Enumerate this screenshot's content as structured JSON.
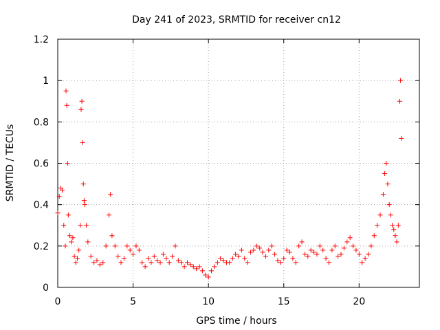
{
  "chart_data": {
    "type": "scatter",
    "title": "Day 241 of 2023, SRMTID for receiver cn12",
    "xlabel": "GPS time / hours",
    "ylabel": "SRMTID / TECUs",
    "xlim": [
      0,
      24
    ],
    "ylim": [
      0,
      1.2
    ],
    "xticks": [
      0,
      5,
      10,
      15,
      20
    ],
    "xtick_labels": [
      "0",
      "5",
      "10",
      "15",
      "20"
    ],
    "yticks": [
      0,
      0.2,
      0.4,
      0.6,
      0.8,
      1.0,
      1.2
    ],
    "ytick_labels": [
      "0",
      "0.2",
      "0.4",
      "0.6",
      "0.8",
      "1",
      "1.2"
    ],
    "grid": true,
    "marker": "+",
    "color": "#ff0000",
    "series": [
      {
        "name": "SRMTID",
        "x": [
          0.0,
          0.1,
          0.2,
          0.3,
          0.4,
          0.5,
          0.55,
          0.6,
          0.65,
          0.7,
          0.8,
          0.9,
          1.0,
          1.1,
          1.2,
          1.3,
          1.4,
          1.5,
          1.55,
          1.6,
          1.65,
          1.7,
          1.75,
          1.8,
          1.9,
          2.0,
          2.2,
          2.4,
          2.6,
          2.8,
          3.0,
          3.2,
          3.4,
          3.5,
          3.6,
          3.8,
          4.0,
          4.2,
          4.4,
          4.6,
          4.8,
          5.0,
          5.2,
          5.4,
          5.6,
          5.8,
          6.0,
          6.2,
          6.4,
          6.6,
          6.8,
          7.0,
          7.2,
          7.4,
          7.6,
          7.8,
          8.0,
          8.2,
          8.4,
          8.6,
          8.8,
          9.0,
          9.2,
          9.4,
          9.6,
          9.8,
          10.0,
          10.2,
          10.4,
          10.6,
          10.8,
          11.0,
          11.2,
          11.4,
          11.6,
          11.8,
          12.0,
          12.2,
          12.4,
          12.6,
          12.8,
          13.0,
          13.2,
          13.4,
          13.6,
          13.8,
          14.0,
          14.2,
          14.4,
          14.6,
          14.8,
          15.0,
          15.2,
          15.4,
          15.6,
          15.8,
          16.0,
          16.2,
          16.4,
          16.6,
          16.8,
          17.0,
          17.2,
          17.4,
          17.6,
          17.8,
          18.0,
          18.2,
          18.4,
          18.6,
          18.8,
          19.0,
          19.2,
          19.4,
          19.6,
          19.8,
          20.0,
          20.2,
          20.4,
          20.6,
          20.8,
          21.0,
          21.2,
          21.4,
          21.6,
          21.7,
          21.8,
          21.9,
          22.0,
          22.1,
          22.2,
          22.3,
          22.4,
          22.5,
          22.6,
          22.7,
          22.75,
          22.8
        ],
        "y": [
          0.36,
          0.44,
          0.48,
          0.47,
          0.3,
          0.2,
          0.95,
          0.88,
          0.6,
          0.35,
          0.25,
          0.22,
          0.24,
          0.15,
          0.12,
          0.14,
          0.18,
          0.3,
          0.86,
          0.9,
          0.7,
          0.5,
          0.42,
          0.4,
          0.3,
          0.22,
          0.15,
          0.12,
          0.13,
          0.11,
          0.12,
          0.2,
          0.35,
          0.45,
          0.25,
          0.2,
          0.15,
          0.12,
          0.14,
          0.2,
          0.18,
          0.16,
          0.2,
          0.18,
          0.12,
          0.1,
          0.14,
          0.12,
          0.15,
          0.13,
          0.12,
          0.16,
          0.14,
          0.12,
          0.15,
          0.2,
          0.13,
          0.12,
          0.1,
          0.12,
          0.11,
          0.1,
          0.09,
          0.1,
          0.08,
          0.06,
          0.05,
          0.08,
          0.1,
          0.12,
          0.14,
          0.13,
          0.12,
          0.12,
          0.14,
          0.16,
          0.15,
          0.18,
          0.14,
          0.12,
          0.17,
          0.18,
          0.2,
          0.19,
          0.17,
          0.15,
          0.18,
          0.2,
          0.16,
          0.13,
          0.12,
          0.14,
          0.18,
          0.17,
          0.14,
          0.12,
          0.2,
          0.22,
          0.16,
          0.15,
          0.18,
          0.17,
          0.16,
          0.2,
          0.18,
          0.14,
          0.12,
          0.18,
          0.2,
          0.15,
          0.16,
          0.19,
          0.22,
          0.24,
          0.2,
          0.18,
          0.16,
          0.12,
          0.14,
          0.16,
          0.2,
          0.25,
          0.3,
          0.35,
          0.45,
          0.55,
          0.6,
          0.5,
          0.4,
          0.35,
          0.3,
          0.28,
          0.25,
          0.22,
          0.3,
          0.9,
          1.0,
          0.72
        ]
      }
    ]
  }
}
